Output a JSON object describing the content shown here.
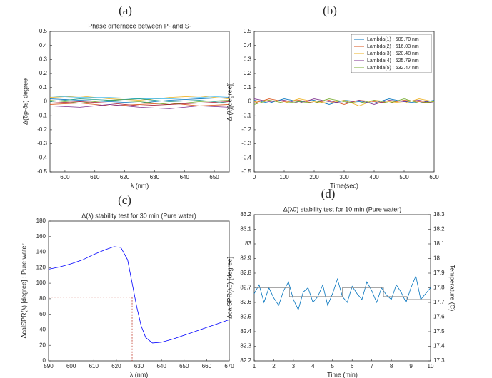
{
  "chart_data": [
    {
      "type": "line",
      "label": "(a)",
      "title": "Phase differnece between P- and S-",
      "xlabel": "λ (nm)",
      "ylabel": "Δ(δp-δs) degree",
      "x": [
        595,
        605,
        615,
        625,
        635,
        645,
        655
      ],
      "xlim": [
        595,
        655
      ],
      "xticks": [
        600,
        610,
        620,
        630,
        640,
        650
      ],
      "ylim": [
        -0.5,
        0.5
      ],
      "yticks": [
        -0.5,
        -0.4,
        -0.3,
        -0.2,
        -0.1,
        0,
        0.1,
        0.2,
        0.3,
        0.4,
        0.5
      ],
      "series": [
        {
          "color": "#0072bd",
          "values": [
            0.02,
            0.01,
            0.0,
            -0.01,
            0.01,
            0.02,
            0.03
          ]
        },
        {
          "color": "#d95319",
          "values": [
            -0.02,
            -0.01,
            -0.03,
            -0.02,
            -0.01,
            -0.03,
            -0.02
          ]
        },
        {
          "color": "#edb120",
          "values": [
            0.03,
            0.04,
            0.02,
            0.01,
            0.03,
            0.04,
            0.02
          ]
        },
        {
          "color": "#7e2f8e",
          "values": [
            -0.03,
            -0.04,
            -0.02,
            -0.04,
            -0.05,
            -0.03,
            -0.04
          ]
        },
        {
          "color": "#77ac30",
          "values": [
            0.01,
            -0.01,
            0.01,
            0.0,
            -0.02,
            0.0,
            0.01
          ]
        },
        {
          "color": "#4dbeee",
          "values": [
            0.04,
            0.03,
            0.03,
            0.02,
            0.02,
            0.03,
            0.04
          ]
        },
        {
          "color": "#a2142f",
          "values": [
            -0.01,
            0.0,
            -0.01,
            -0.03,
            -0.02,
            -0.01,
            0.0
          ]
        },
        {
          "color": "#1f9e89",
          "values": [
            0.0,
            0.02,
            0.01,
            0.02,
            0.0,
            0.01,
            -0.01
          ]
        }
      ]
    },
    {
      "type": "line",
      "label": "(b)",
      "xlabel": "Time(sec)",
      "ylabel": "Δ (λ)[degree]]",
      "legend": "upper right",
      "x": [
        0,
        50,
        100,
        150,
        200,
        250,
        300,
        350,
        400,
        450,
        500,
        550,
        600
      ],
      "xlim": [
        0,
        600
      ],
      "xticks": [
        0,
        100,
        200,
        300,
        400,
        500,
        600
      ],
      "ylim": [
        -0.5,
        0.5
      ],
      "yticks": [
        -0.5,
        -0.4,
        -0.3,
        -0.2,
        -0.1,
        0,
        0.1,
        0.2,
        0.3,
        0.4,
        0.5
      ],
      "series": [
        {
          "name": "Lambda(1) : 609.70 nm",
          "color": "#0072bd",
          "values": [
            0.01,
            -0.01,
            0.02,
            0.0,
            0.01,
            -0.02,
            0.01,
            0.0,
            -0.01,
            0.02,
            0.0,
            -0.01,
            0.01
          ]
        },
        {
          "name": "Lambda(2) : 616.03 nm",
          "color": "#d95319",
          "values": [
            -0.01,
            0.02,
            0.0,
            0.01,
            -0.01,
            0.01,
            -0.02,
            0.01,
            0.0,
            -0.01,
            0.01,
            0.0,
            -0.01
          ]
        },
        {
          "name": "Lambda(3) : 620.48 nm",
          "color": "#edb120",
          "values": [
            0.0,
            0.01,
            -0.01,
            0.02,
            0.0,
            -0.01,
            0.01,
            -0.03,
            0.01,
            0.0,
            -0.01,
            0.02,
            0.0
          ]
        },
        {
          "name": "Lambda(4) : 625.79 nm",
          "color": "#7e2f8e",
          "values": [
            0.02,
            0.0,
            0.01,
            -0.01,
            0.02,
            0.0,
            -0.01,
            0.01,
            -0.02,
            0.01,
            0.0,
            0.01,
            -0.01
          ]
        },
        {
          "name": "Lambda(5) : 632.47 nm",
          "color": "#77ac30",
          "values": [
            -0.02,
            0.01,
            -0.01,
            0.0,
            -0.01,
            0.02,
            0.0,
            -0.01,
            0.01,
            -0.01,
            0.02,
            -0.01,
            0.0
          ]
        }
      ]
    },
    {
      "type": "line",
      "label": "(c)",
      "title": "Δ(λ) stability test for 30 min (Pure water)",
      "xlabel": "λ (nm)",
      "ylabel": "ΔcalSPR(λ) [degree] : Pure water",
      "x": [
        590,
        595,
        600,
        605,
        610,
        615,
        619,
        622,
        625,
        627,
        629,
        631,
        633,
        636,
        640,
        645,
        650,
        655,
        660,
        665,
        670
      ],
      "xlim": [
        590,
        670
      ],
      "xticks": [
        590,
        600,
        610,
        620,
        630,
        640,
        650,
        660,
        670
      ],
      "ylim": [
        0,
        180
      ],
      "yticks": [
        0,
        20,
        40,
        60,
        80,
        100,
        120,
        140,
        160,
        180
      ],
      "series": [
        {
          "color": "#0000ff",
          "values": [
            118,
            121,
            125,
            130,
            137,
            143,
            147,
            146,
            130,
            100,
            70,
            45,
            30,
            23,
            24,
            28,
            33,
            38,
            43,
            48,
            53
          ]
        }
      ],
      "marker": {
        "x": 627,
        "y": 82,
        "color": "#c0392b"
      }
    },
    {
      "type": "line",
      "label": "(d)",
      "title": "Δ(λ0) stability test for 10 min (Pure water)",
      "xlabel": "Time (min)",
      "ylabel": "ΔcalSPR(λ0) [degree]",
      "y2label": "Temperature (C)",
      "x": [
        1,
        1.25,
        1.5,
        1.75,
        2,
        2.25,
        2.5,
        2.75,
        3,
        3.25,
        3.5,
        3.75,
        4,
        4.25,
        4.5,
        4.75,
        5,
        5.25,
        5.5,
        5.75,
        6,
        6.25,
        6.5,
        6.75,
        7,
        7.25,
        7.5,
        7.75,
        8,
        8.25,
        8.5,
        8.75,
        9,
        9.25,
        9.5,
        9.75,
        10
      ],
      "xlim": [
        1,
        10
      ],
      "xticks": [
        1,
        2,
        3,
        4,
        5,
        6,
        7,
        8,
        9,
        10
      ],
      "ylim": [
        82.2,
        83.2
      ],
      "yticks": [
        82.2,
        82.3,
        82.4,
        82.5,
        82.6,
        82.7,
        82.8,
        82.9,
        83,
        83.1,
        83.2
      ],
      "ycolor": "#0072bd",
      "y2lim": [
        17.3,
        18.3
      ],
      "y2ticks": [
        17.3,
        17.4,
        17.5,
        17.6,
        17.7,
        17.8,
        17.9,
        18,
        18.1,
        18.2,
        18.3
      ],
      "y2color": "#d95319",
      "series": [
        {
          "color": "#0072bd",
          "values": [
            82.66,
            82.72,
            82.6,
            82.7,
            82.63,
            82.58,
            82.68,
            82.74,
            82.62,
            82.55,
            82.67,
            82.7,
            82.6,
            82.64,
            82.72,
            82.58,
            82.66,
            82.76,
            82.64,
            82.6,
            82.71,
            82.66,
            82.62,
            82.74,
            82.68,
            82.6,
            82.7,
            82.65,
            82.62,
            82.72,
            82.67,
            82.6,
            82.7,
            82.78,
            82.62,
            82.66,
            82.7
          ]
        },
        {
          "color": "#8c8c8c",
          "axis": "y2",
          "x": [
            1,
            2.8,
            2.8,
            5.5,
            5.5,
            7.6,
            7.6,
            8.8,
            8.8,
            10
          ],
          "values": [
            17.8,
            17.8,
            17.74,
            17.74,
            17.8,
            17.8,
            17.74,
            17.74,
            17.72,
            17.72
          ]
        }
      ]
    }
  ]
}
